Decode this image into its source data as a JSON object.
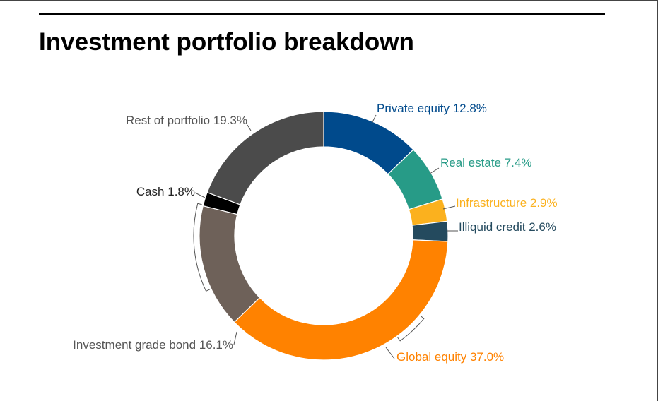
{
  "chart_data": {
    "type": "pie",
    "title": "Investment portfolio breakdown",
    "subtitle": "",
    "donut": true,
    "legend": "none",
    "slices": [
      {
        "label": "Private equity",
        "value": 12.8,
        "value_label": "12.8%",
        "color": "#004a8c"
      },
      {
        "label": "Real estate",
        "value": 7.4,
        "value_label": "7.4%",
        "color": "#279b87"
      },
      {
        "label": "Infrastructure",
        "value": 2.9,
        "value_label": "2.9%",
        "color": "#fbb11e"
      },
      {
        "label": "Illiquid credit",
        "value": 2.6,
        "value_label": "2.6%",
        "color": "#244a5e"
      },
      {
        "label": "Global equity",
        "value": 37.0,
        "value_label": "37.0%",
        "color": "#ff8200"
      },
      {
        "label": "Investment grade bond",
        "value": 16.1,
        "value_label": "16.1%",
        "color": "#6e6159"
      },
      {
        "label": "Cash",
        "value": 1.8,
        "value_label": "1.8%",
        "color": "#000000"
      },
      {
        "label": "Rest of portfolio",
        "value": 19.3,
        "value_label": "19.3%",
        "color": "#4b4b4b"
      }
    ],
    "label_colors": {
      "Private equity": "#004a8c",
      "Real estate": "#279b87",
      "Infrastructure": "#fbb11e",
      "Illiquid credit": "#244a5e",
      "Global equity": "#ff8200",
      "Investment grade bond": "#555555",
      "Cash": "#222222",
      "Rest of portfolio": "#555555"
    }
  }
}
